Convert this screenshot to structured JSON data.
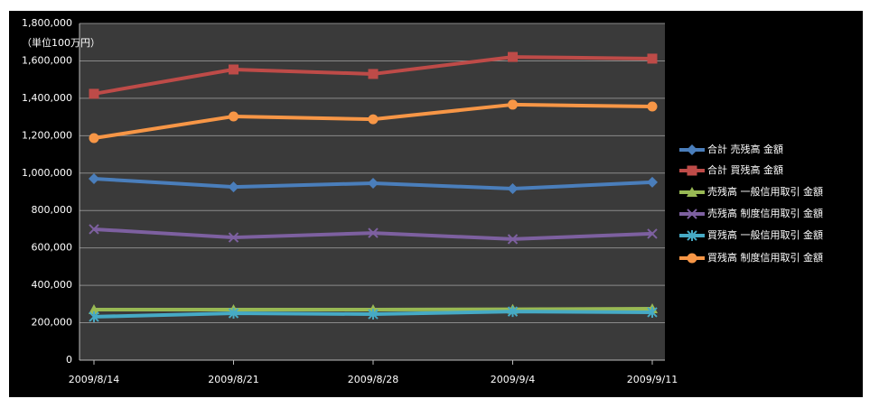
{
  "chart_data": {
    "type": "line",
    "annotation": "（単位100万円）",
    "categories": [
      "2009/8/14",
      "2009/8/21",
      "2009/8/28",
      "2009/9/4",
      "2009/9/11"
    ],
    "series": [
      {
        "name": "合計 売残高 金額",
        "color": "#4a7ebb",
        "marker": "diamond",
        "values": [
          970000,
          926000,
          946000,
          917000,
          951000
        ]
      },
      {
        "name": "合計 買残高 金額",
        "color": "#be4b48",
        "marker": "square",
        "values": [
          1424000,
          1554000,
          1530000,
          1621000,
          1612000
        ]
      },
      {
        "name": "売残高 一般信用取引 金額",
        "color": "#98b954",
        "marker": "triangle",
        "values": [
          270000,
          270000,
          270000,
          272000,
          275000
        ]
      },
      {
        "name": "売残高 制度信用取引 金額",
        "color": "#7d60a0",
        "marker": "x",
        "values": [
          700000,
          656000,
          680000,
          647000,
          676000
        ]
      },
      {
        "name": "買残高 一般信用取引 金額",
        "color": "#46aac5",
        "marker": "star",
        "values": [
          232000,
          251000,
          246000,
          260000,
          256000
        ]
      },
      {
        "name": "買残高 制度信用取引 金額",
        "color": "#f79646",
        "marker": "circle",
        "values": [
          1187000,
          1303000,
          1288000,
          1366000,
          1356000
        ]
      }
    ],
    "ylim": [
      0,
      1800000
    ],
    "yticks": [
      0,
      {
        "value": 200000,
        "label": "200,000"
      },
      {
        "value": 400000,
        "label": "400,000"
      },
      {
        "value": 600000,
        "label": "600,000"
      },
      {
        "value": 800000,
        "label": "800,000"
      },
      {
        "value": 1000000,
        "label": "1,000,000"
      },
      {
        "value": 1200000,
        "label": "1,200,000"
      },
      {
        "value": 1400000,
        "label": "1,400,000"
      },
      {
        "value": 1600000,
        "label": "1,600,000"
      },
      {
        "value": 1800000,
        "label": "1,800,000"
      }
    ],
    "grid": true,
    "legend": "right"
  }
}
